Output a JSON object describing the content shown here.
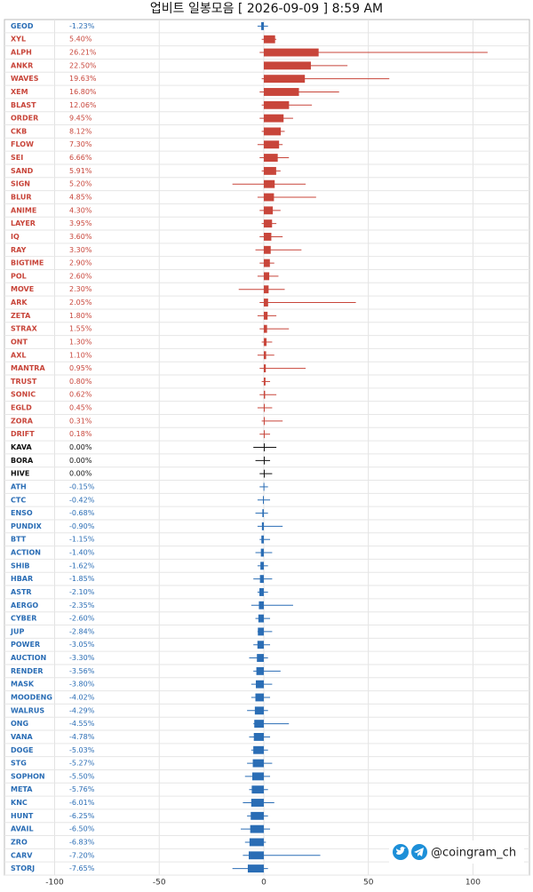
{
  "chart_data": {
    "type": "range-bar",
    "title": "업비트 일봉모음 [ 2026-09-09 ]  8:59 AM",
    "watermark": "@coingram_ch",
    "categories": [
      "GEOD",
      "XYL",
      "ALPH",
      "ANKR",
      "WAVES",
      "XEM",
      "BLAST",
      "ORDER",
      "CKB",
      "FLOW",
      "SEI",
      "SAND",
      "SIGN",
      "BLUR",
      "ANIME",
      "LAYER",
      "IQ",
      "RAY",
      "BIGTIME",
      "POL",
      "MOVE",
      "ARK",
      "ZETA",
      "STRAX",
      "ONT",
      "AXL",
      "MANTRA",
      "TRUST",
      "SONIC",
      "EGLD",
      "ZORA",
      "DRIFT",
      "KAVA",
      "BORA",
      "HIVE",
      "ATH",
      "CTC",
      "ENSO",
      "PUNDIX",
      "BTT",
      "ACTION",
      "SHIB",
      "HBAR",
      "ASTR",
      "AERGO",
      "CYBER",
      "JUP",
      "POWER",
      "AUCTION",
      "RENDER",
      "MASK",
      "MOODENG",
      "WALRUS",
      "ONG",
      "VANA",
      "DOGE",
      "STG",
      "SOPHON",
      "META",
      "KNC",
      "HUNT",
      "AVAIL",
      "ZRO",
      "CARV",
      "STORJ"
    ],
    "values": [
      -1.23,
      5.4,
      26.21,
      22.5,
      19.63,
      16.8,
      12.06,
      9.45,
      8.12,
      7.3,
      6.66,
      5.91,
      5.2,
      4.85,
      4.3,
      3.95,
      3.6,
      3.3,
      2.9,
      2.6,
      2.3,
      2.05,
      1.8,
      1.55,
      1.3,
      1.1,
      0.95,
      0.8,
      0.62,
      0.45,
      0.31,
      0.18,
      0,
      0,
      0,
      -0.15,
      -0.42,
      -0.68,
      -0.9,
      -1.15,
      -1.4,
      -1.62,
      -1.85,
      -2.1,
      -2.35,
      -2.6,
      -2.84,
      -3.05,
      -3.3,
      -3.56,
      -3.8,
      -4.02,
      -4.29,
      -4.55,
      -4.78,
      -5.03,
      -5.27,
      -5.5,
      -5.76,
      -6.01,
      -6.25,
      -6.5,
      -6.83,
      -7.2,
      -7.65
    ],
    "value_labels": [
      "-1.23%",
      "5.40%",
      "26.21%",
      "22.50%",
      "19.63%",
      "16.80%",
      "12.06%",
      "9.45%",
      "8.12%",
      "7.30%",
      "6.66%",
      "5.91%",
      "5.20%",
      "4.85%",
      "4.30%",
      "3.95%",
      "3.60%",
      "3.30%",
      "2.90%",
      "2.60%",
      "2.30%",
      "2.05%",
      "1.80%",
      "1.55%",
      "1.30%",
      "1.10%",
      "0.95%",
      "0.80%",
      "0.62%",
      "0.45%",
      "0.31%",
      "0.18%",
      "0.00%",
      "0.00%",
      "0.00%",
      "-0.15%",
      "-0.42%",
      "-0.68%",
      "-0.90%",
      "-1.15%",
      "-1.40%",
      "-1.62%",
      "-1.85%",
      "-2.10%",
      "-2.35%",
      "-2.60%",
      "-2.84%",
      "-3.05%",
      "-3.30%",
      "-3.56%",
      "-3.80%",
      "-4.02%",
      "-4.29%",
      "-4.55%",
      "-4.78%",
      "-5.03%",
      "-5.27%",
      "-5.50%",
      "-5.76%",
      "-6.01%",
      "-6.25%",
      "-6.50%",
      "-6.83%",
      "-7.20%",
      "-7.65%"
    ],
    "low": [
      -3,
      -1,
      -2,
      0,
      -1,
      -2,
      -1,
      -2,
      -1,
      -3,
      -2,
      -1,
      -15,
      -3,
      -2,
      -1,
      -2,
      -4,
      -2,
      -3,
      -12,
      -2,
      -3,
      -2,
      -1,
      -3,
      -2,
      -1,
      -2,
      -3,
      -1,
      -2,
      -5,
      -4,
      -2,
      -2,
      -3,
      -4,
      -3,
      -2,
      -4,
      -3,
      -5,
      -3,
      -6,
      -4,
      -3,
      -5,
      -7,
      -5,
      -6,
      -6,
      -8,
      -5,
      -7,
      -6,
      -8,
      -9,
      -7,
      -10,
      -8,
      -11,
      -9,
      -10,
      -15
    ],
    "high": [
      2,
      6,
      107,
      40,
      60,
      36,
      23,
      14,
      10,
      9,
      12,
      8,
      20,
      25,
      8,
      6,
      9,
      18,
      5,
      7,
      10,
      44,
      6,
      12,
      4,
      5,
      20,
      3,
      6,
      4,
      9,
      3,
      6,
      3,
      4,
      2,
      3,
      2,
      9,
      3,
      4,
      2,
      4,
      2,
      14,
      3,
      4,
      3,
      2,
      8,
      4,
      3,
      2,
      12,
      3,
      2,
      4,
      3,
      2,
      5,
      2,
      3,
      1,
      27,
      2
    ],
    "colors": {
      "up": "#c8453a",
      "flat": "#111111",
      "down": "#2a6db5"
    },
    "xlim": [
      -124,
      127
    ],
    "xticks": [
      -100,
      -50,
      0,
      50,
      100
    ],
    "grid": true
  }
}
